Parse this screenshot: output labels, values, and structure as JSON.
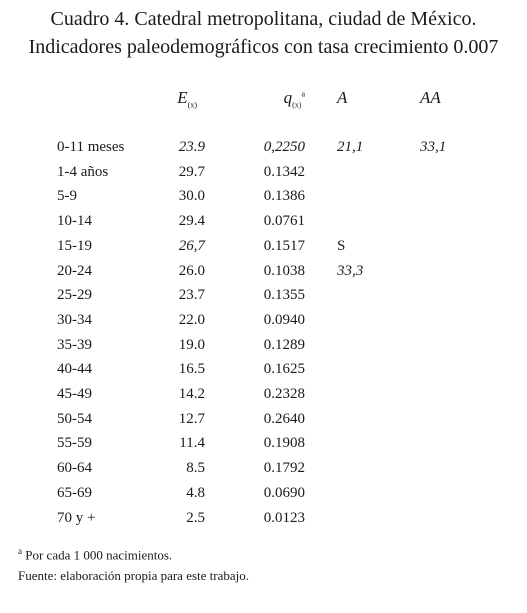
{
  "header": {
    "title_lines": [
      "Cuadro 4. Catedral metropolitana, ciudad de México.",
      "Indicadores paleodemográficos con tasa crecimiento 0.007"
    ]
  },
  "table": {
    "columns": [
      {
        "main": "E",
        "sub": "(x)"
      },
      {
        "main": "q",
        "sub": "(x)",
        "sup": "a"
      },
      {
        "main": "A"
      },
      {
        "main": "AA"
      }
    ],
    "rows": [
      {
        "label": "0-11 meses",
        "e": "23.9",
        "q": "0,2250",
        "a": "21,1",
        "aa": "33,1",
        "italic": [
          "e",
          "q",
          "a",
          "aa"
        ]
      },
      {
        "label": "1-4 años",
        "e": "29.7",
        "q": "0.1342"
      },
      {
        "label": "5-9",
        "e": "30.0",
        "q": "0.1386"
      },
      {
        "label": "10-14",
        "e": "29.4",
        "q": "0.0761"
      },
      {
        "label": "15-19",
        "e": "26,7",
        "q": "0.1517",
        "a": "S",
        "italic": [
          "e"
        ]
      },
      {
        "label": "20-24",
        "e": "26.0",
        "q": "0.1038",
        "a": "33,3",
        "italic": [
          "a"
        ]
      },
      {
        "label": "25-29",
        "e": "23.7",
        "q": "0.1355"
      },
      {
        "label": "30-34",
        "e": "22.0",
        "q": "0.0940"
      },
      {
        "label": "35-39",
        "e": "19.0",
        "q": "0.1289"
      },
      {
        "label": "40-44",
        "e": "16.5",
        "q": "0.1625"
      },
      {
        "label": "45-49",
        "e": "14.2",
        "q": "0.2328"
      },
      {
        "label": "50-54",
        "e": "12.7",
        "q": "0.2640"
      },
      {
        "label": "55-59",
        "e": "11.4",
        "q": "0.1908"
      },
      {
        "label": "60-64",
        "e": "8.5",
        "q": "0.1792"
      },
      {
        "label": "65-69",
        "e": "4.8",
        "q": "0.0690"
      },
      {
        "label": "70 y +",
        "e": "2.5",
        "q": "0.0123"
      }
    ]
  },
  "footnotes": [
    {
      "mark": "a",
      "text": " Por cada 1 000 nacimientos."
    },
    {
      "text": "Fuente: elaboración propia para este trabajo."
    }
  ]
}
